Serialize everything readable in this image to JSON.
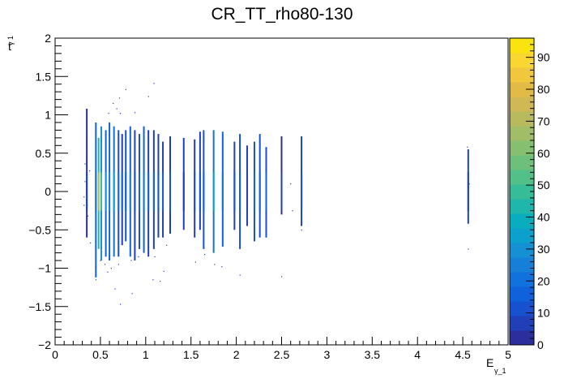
{
  "chart_data": {
    "type": "heatmap",
    "title": "CR_TT_rho80-130",
    "xlabel_main": "E",
    "xlabel_sub": "γ_1",
    "ylabel_main": "t",
    "ylabel_sub": "γ 1",
    "xlim": [
      0,
      5
    ],
    "ylim": [
      -2,
      2
    ],
    "x_ticks": [
      {
        "v": 0,
        "label": "0"
      },
      {
        "v": 0.5,
        "label": "0.5"
      },
      {
        "v": 1,
        "label": "1"
      },
      {
        "v": 1.5,
        "label": "1.5"
      },
      {
        "v": 2,
        "label": "2"
      },
      {
        "v": 2.5,
        "label": "2.5"
      },
      {
        "v": 3,
        "label": "3"
      },
      {
        "v": 3.5,
        "label": "3.5"
      },
      {
        "v": 4,
        "label": "4"
      },
      {
        "v": 4.5,
        "label": "4.5"
      },
      {
        "v": 5,
        "label": "5"
      }
    ],
    "y_ticks": [
      {
        "v": -2,
        "label": "−2"
      },
      {
        "v": -1.5,
        "label": "−1.5"
      },
      {
        "v": -1,
        "label": "−1"
      },
      {
        "v": -0.5,
        "label": "−0.5"
      },
      {
        "v": 0,
        "label": "0"
      },
      {
        "v": 0.5,
        "label": "0.5"
      },
      {
        "v": 1,
        "label": "1"
      },
      {
        "v": 1.5,
        "label": "1.5"
      },
      {
        "v": 2,
        "label": "2"
      }
    ],
    "z_range": [
      0,
      96
    ],
    "z_ticks": [
      {
        "v": 0,
        "label": "0"
      },
      {
        "v": 10,
        "label": "10"
      },
      {
        "v": 20,
        "label": "20"
      },
      {
        "v": 30,
        "label": "30"
      },
      {
        "v": 40,
        "label": "40"
      },
      {
        "v": 50,
        "label": "50"
      },
      {
        "v": 60,
        "label": "60"
      },
      {
        "v": 70,
        "label": "70"
      },
      {
        "v": 80,
        "label": "80"
      },
      {
        "v": 90,
        "label": "90"
      }
    ],
    "palette": [
      "#2b2e9c",
      "#203fb8",
      "#1751cf",
      "#0f62dc",
      "#1171dd",
      "#1680d8",
      "#1590d4",
      "#0ca0cc",
      "#09adbe",
      "#1fb6ab",
      "#37bc98",
      "#52c089",
      "#6cc07c",
      "#87bf70",
      "#a1bd67",
      "#b9ba5d",
      "#d0b853",
      "#e2bb46",
      "#f1c73d",
      "#fad633",
      "#f9e40f"
    ],
    "columns": [
      {
        "x": 0.35,
        "ymin": -0.6,
        "ymax": 1.08,
        "z": 3
      },
      {
        "x": 0.45,
        "ymin": -1.12,
        "ymax": 0.9,
        "z": 14
      },
      {
        "x": 0.48,
        "ymin": -0.75,
        "ymax": 0.7,
        "z": 45
      },
      {
        "x": 0.51,
        "ymin": -0.9,
        "ymax": 0.85,
        "z": 30
      },
      {
        "x": 0.56,
        "ymin": -0.85,
        "ymax": 0.8,
        "z": 18
      },
      {
        "x": 0.6,
        "ymin": -0.9,
        "ymax": 0.9,
        "z": 15
      },
      {
        "x": 0.65,
        "ymin": -0.85,
        "ymax": 0.85,
        "z": 22
      },
      {
        "x": 0.7,
        "ymin": -0.85,
        "ymax": 0.8,
        "z": 12
      },
      {
        "x": 0.74,
        "ymin": -0.7,
        "ymax": 0.75,
        "z": 9
      },
      {
        "x": 0.78,
        "ymin": -0.65,
        "ymax": 0.8,
        "z": 11
      },
      {
        "x": 0.83,
        "ymin": -0.85,
        "ymax": 0.85,
        "z": 17
      },
      {
        "x": 0.88,
        "ymin": -0.9,
        "ymax": 0.8,
        "z": 8
      },
      {
        "x": 0.93,
        "ymin": -0.75,
        "ymax": 0.75,
        "z": 10
      },
      {
        "x": 0.98,
        "ymin": -0.8,
        "ymax": 0.85,
        "z": 14
      },
      {
        "x": 1.03,
        "ymin": -0.85,
        "ymax": 0.8,
        "z": 9
      },
      {
        "x": 1.09,
        "ymin": -0.75,
        "ymax": 0.8,
        "z": 9
      },
      {
        "x": 1.14,
        "ymin": -0.6,
        "ymax": 0.75,
        "z": 7
      },
      {
        "x": 1.19,
        "ymin": -0.6,
        "ymax": 0.65,
        "z": 9
      },
      {
        "x": 1.27,
        "ymin": -0.55,
        "ymax": 0.72,
        "z": 6
      },
      {
        "x": 1.42,
        "ymin": -0.5,
        "ymax": 0.7,
        "z": 5
      },
      {
        "x": 1.54,
        "ymin": -0.6,
        "ymax": 0.68,
        "z": 6
      },
      {
        "x": 1.6,
        "ymin": -0.5,
        "ymax": 0.78,
        "z": 8
      },
      {
        "x": 1.64,
        "ymin": -0.75,
        "ymax": 0.8,
        "z": 10
      },
      {
        "x": 1.75,
        "ymin": -0.8,
        "ymax": 0.8,
        "z": 20
      },
      {
        "x": 1.85,
        "ymin": -0.72,
        "ymax": 0.78,
        "z": 14
      },
      {
        "x": 1.98,
        "ymin": -0.5,
        "ymax": 0.65,
        "z": 6
      },
      {
        "x": 2.04,
        "ymin": -0.75,
        "ymax": 0.75,
        "z": 11
      },
      {
        "x": 2.12,
        "ymin": -0.45,
        "ymax": 0.6,
        "z": 5
      },
      {
        "x": 2.2,
        "ymin": -0.65,
        "ymax": 0.65,
        "z": 10
      },
      {
        "x": 2.26,
        "ymin": -0.6,
        "ymax": 0.75,
        "z": 10
      },
      {
        "x": 2.33,
        "ymin": -0.6,
        "ymax": 0.58,
        "z": 11
      },
      {
        "x": 2.5,
        "ymin": -0.3,
        "ymax": 0.72,
        "z": 3
      },
      {
        "x": 2.72,
        "ymin": -0.45,
        "ymax": 0.72,
        "z": 7
      },
      {
        "x": 4.56,
        "ymin": -0.42,
        "ymax": 0.55,
        "z": 5
      }
    ],
    "scatter": [
      [
        0.35,
        0.77
      ],
      [
        0.45,
        -1.15
      ],
      [
        0.45,
        -0.98
      ],
      [
        0.5,
        -0.9
      ],
      [
        0.55,
        -0.95
      ],
      [
        0.62,
        -1.0
      ],
      [
        0.7,
        -0.95
      ],
      [
        0.84,
        -0.9
      ],
      [
        0.92,
        -0.85
      ],
      [
        1.1,
        -0.85
      ],
      [
        1.2,
        -1.04
      ],
      [
        1.23,
        -0.7
      ],
      [
        1.55,
        -0.92
      ],
      [
        1.65,
        -0.82
      ],
      [
        1.76,
        -0.95
      ],
      [
        1.84,
        -0.98
      ],
      [
        2.04,
        -1.09
      ],
      [
        2.5,
        -1.11
      ],
      [
        0.88,
        1.03
      ],
      [
        0.72,
        1.02
      ],
      [
        0.68,
        1.08
      ],
      [
        0.64,
        1.15
      ],
      [
        0.78,
        1.33
      ],
      [
        0.71,
        1.22
      ],
      [
        1.03,
        1.24
      ],
      [
        1.09,
        1.41
      ],
      [
        0.59,
        1.02
      ],
      [
        0.58,
        -1.05
      ],
      [
        0.66,
        -1.27
      ],
      [
        0.72,
        -1.47
      ],
      [
        0.85,
        -1.33
      ],
      [
        1.08,
        -1.15
      ],
      [
        1.16,
        -1.17
      ],
      [
        0.32,
        -0.07
      ],
      [
        0.33,
        0.13
      ],
      [
        0.32,
        -0.18
      ],
      [
        0.36,
        -0.32
      ],
      [
        0.33,
        0.36
      ],
      [
        0.39,
        -0.67
      ],
      [
        0.35,
        0.48
      ],
      [
        0.38,
        0.27
      ],
      [
        2.72,
        -0.5
      ],
      [
        4.56,
        -0.75
      ],
      [
        4.55,
        0.58
      ],
      [
        4.57,
        0.1
      ],
      [
        2.6,
        0.1
      ],
      [
        2.62,
        -0.25
      ]
    ]
  }
}
